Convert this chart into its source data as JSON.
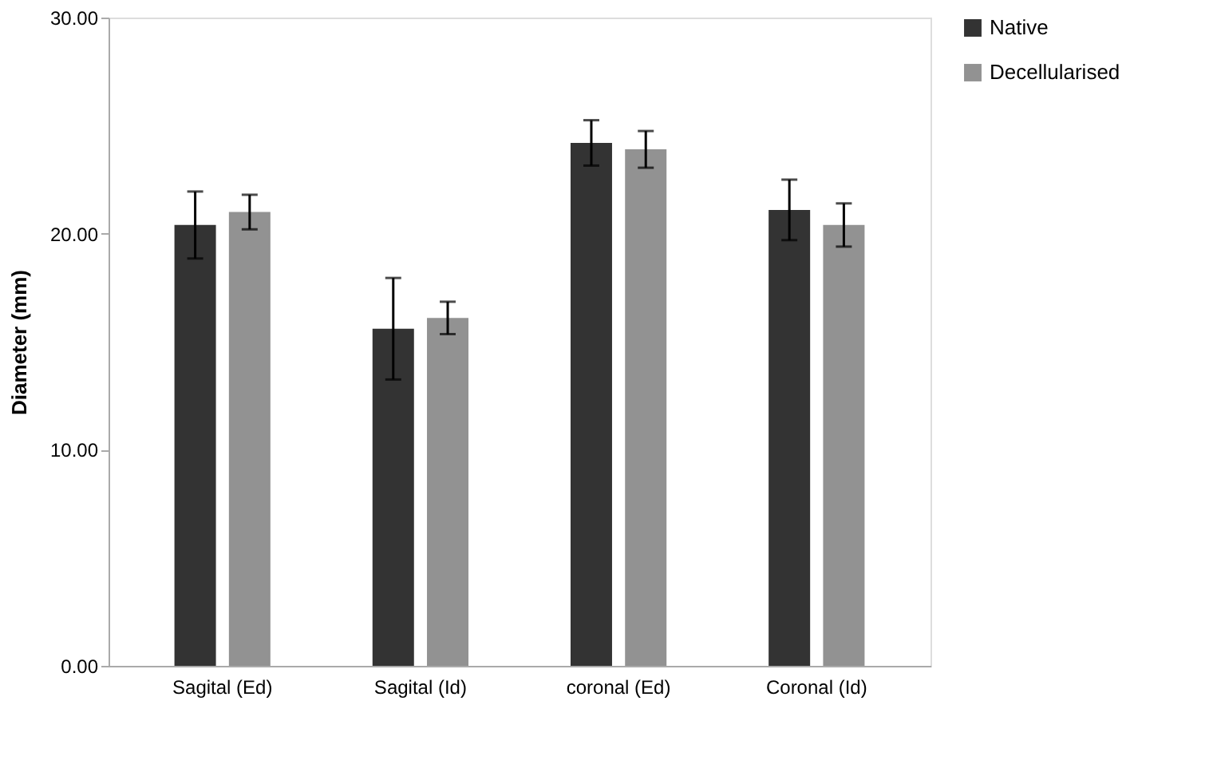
{
  "chart_data": {
    "type": "bar",
    "ylabel": "Diameter (mm)",
    "categories": [
      "Sagital (Ed)",
      "Sagital (Id)",
      "coronal (Ed)",
      "Coronal (Id)"
    ],
    "series": [
      {
        "name": "Native",
        "color": "#333333",
        "values": [
          20.4,
          15.6,
          24.2,
          21.1
        ],
        "errors": [
          1.55,
          2.35,
          1.05,
          1.4
        ]
      },
      {
        "name": "Decellularised",
        "color": "#929292",
        "values": [
          21.0,
          16.1,
          23.9,
          20.4
        ],
        "errors": [
          0.8,
          0.75,
          0.85,
          1.0
        ]
      }
    ],
    "ylim": [
      0,
      30
    ],
    "yticks": [
      {
        "value": 0,
        "label": "0.00"
      },
      {
        "value": 10,
        "label": "10.00"
      },
      {
        "value": 20,
        "label": "20.00"
      },
      {
        "value": 30,
        "label": "30.00"
      }
    ],
    "grid": false,
    "legend": "right"
  }
}
